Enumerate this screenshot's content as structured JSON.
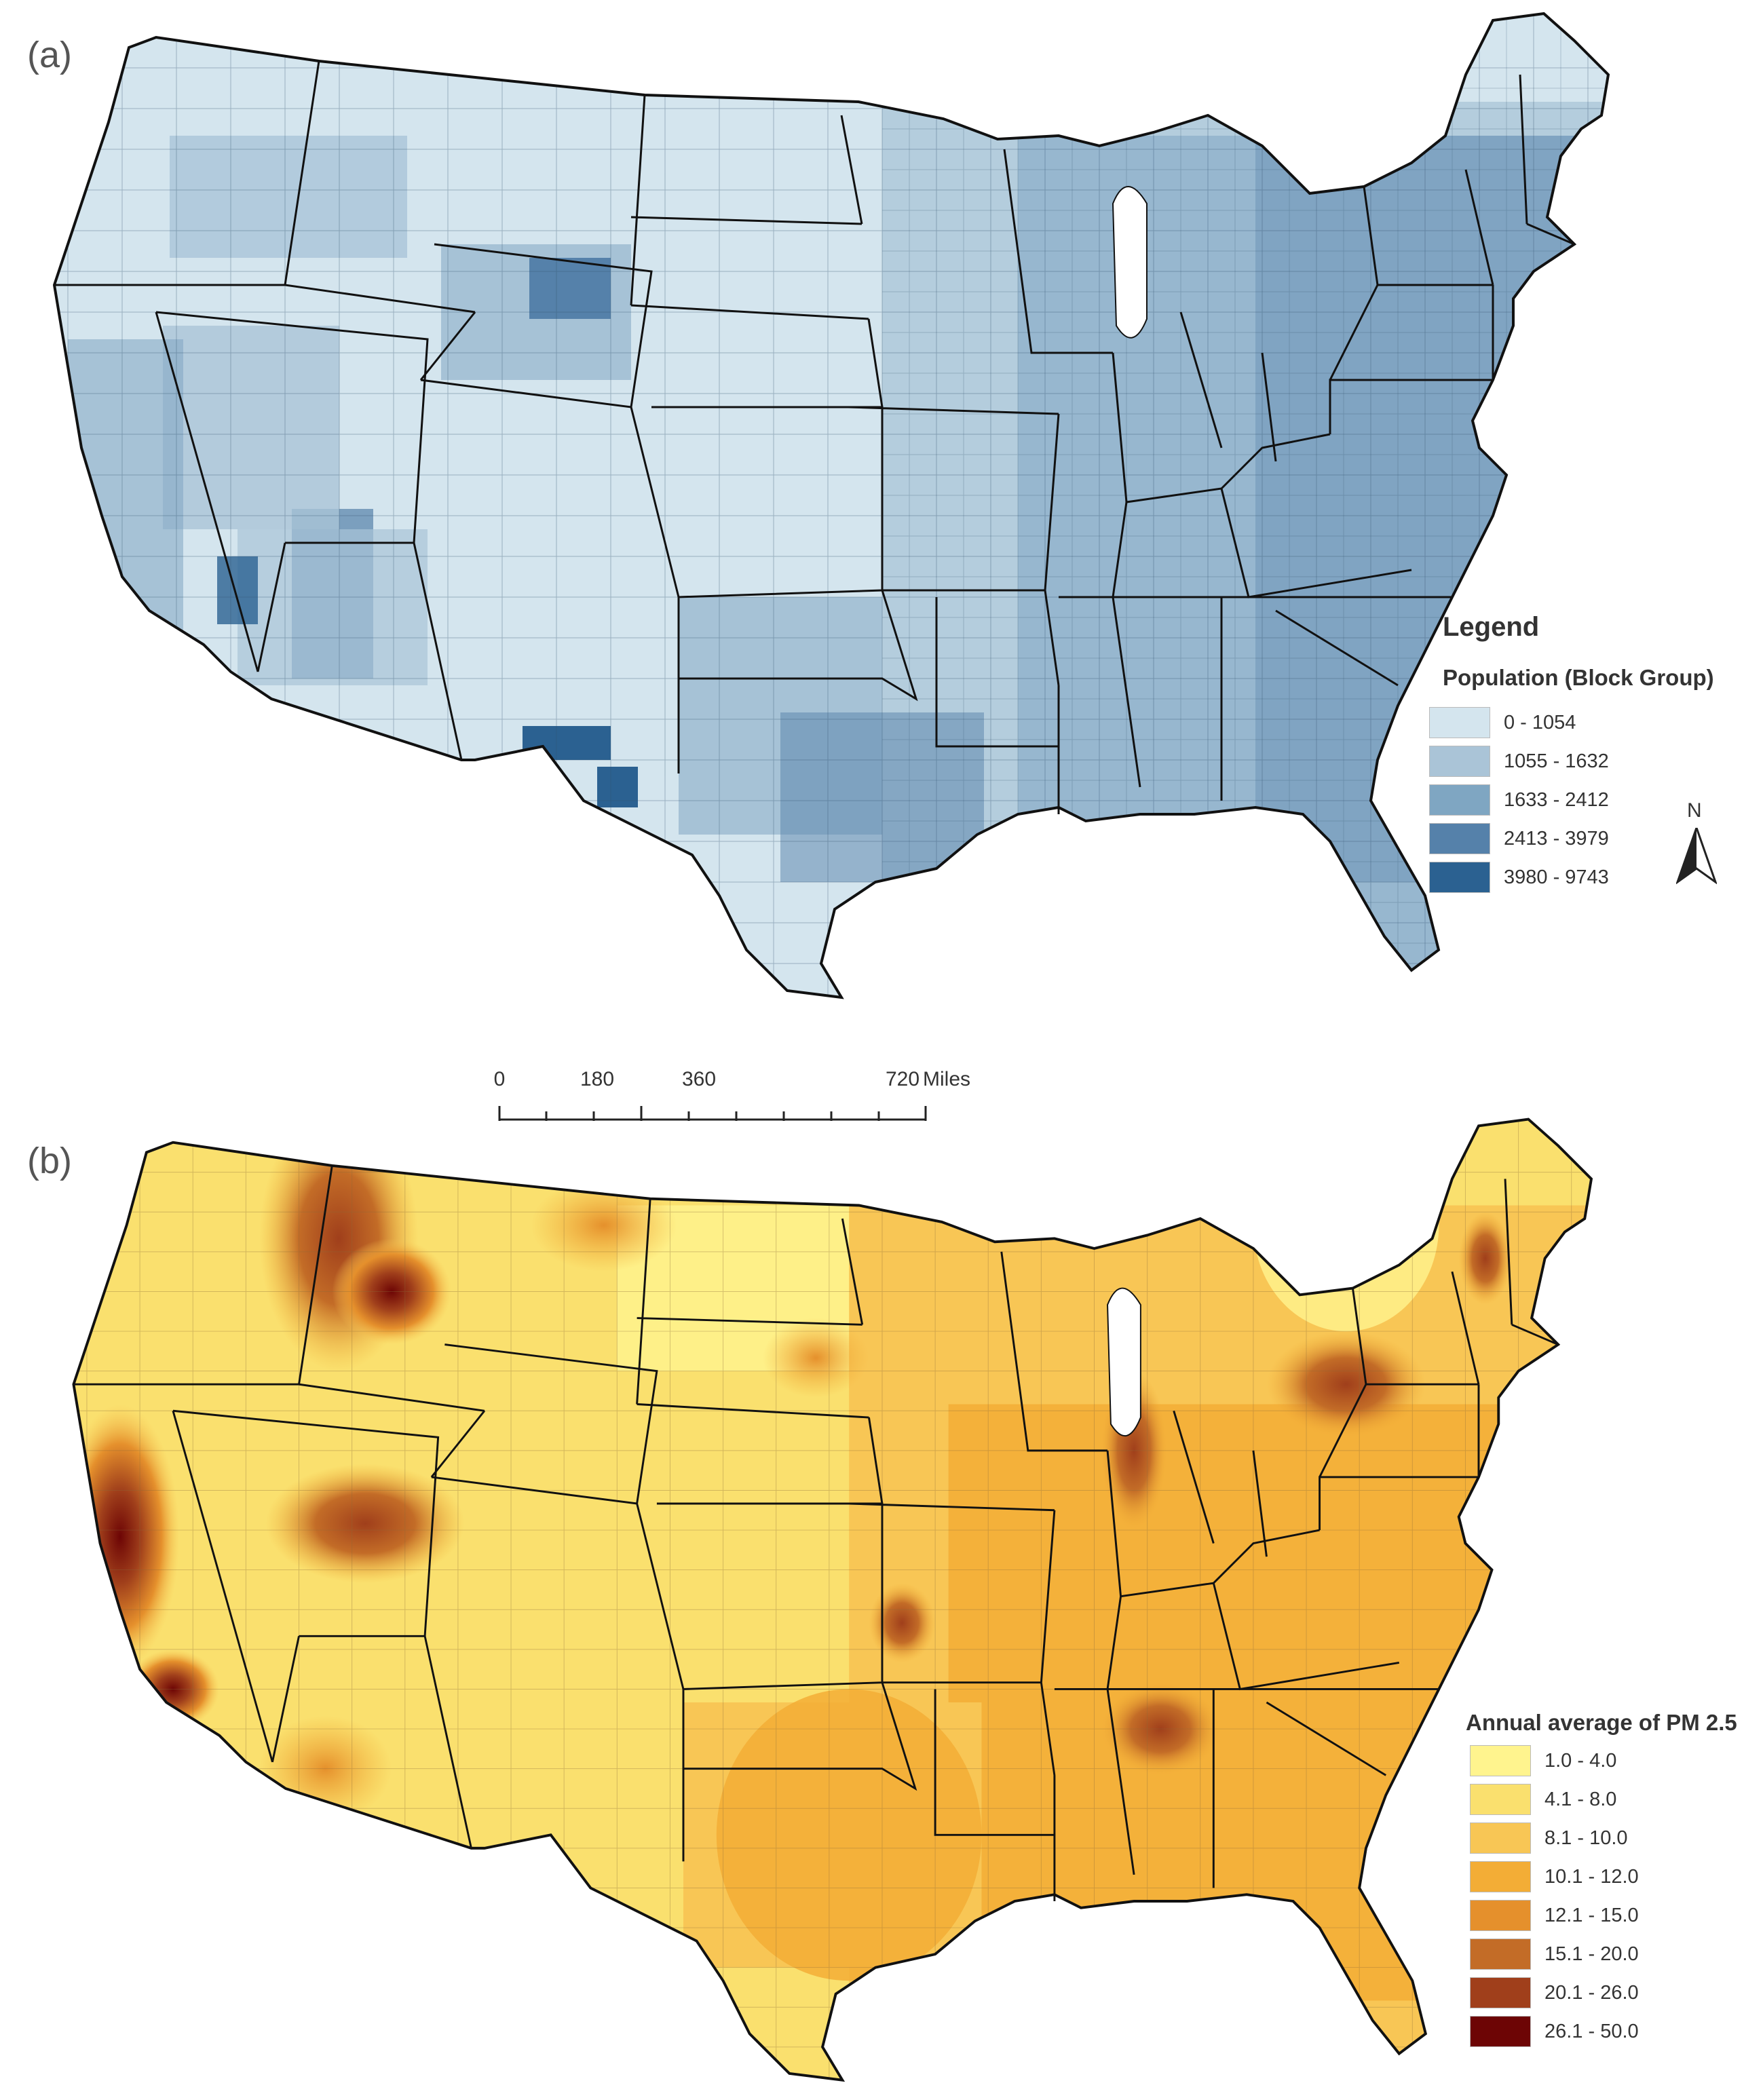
{
  "panel_a": {
    "label": "(a)",
    "legend_title": "Legend",
    "legend_subtitle": "Population (Block Group)",
    "classes": [
      {
        "label": "0 - 1054",
        "color": "#d4e5ee"
      },
      {
        "label": "1055 - 1632",
        "color": "#aac4d7"
      },
      {
        "label": "1633 - 2412",
        "color": "#7fa6c2"
      },
      {
        "label": "2413 - 3979",
        "color": "#5581aa"
      },
      {
        "label": "3980 - 9743",
        "color": "#2b6191"
      }
    ]
  },
  "panel_b": {
    "label": "(b)",
    "legend_subtitle": "Annual average of PM 2.5",
    "classes": [
      {
        "label": "1.0 - 4.0",
        "color": "#fff48e"
      },
      {
        "label": "4.1 - 8.0",
        "color": "#fae06e"
      },
      {
        "label": "8.1 - 10.0",
        "color": "#f8c655"
      },
      {
        "label": "10.1 - 12.0",
        "color": "#f3ad36"
      },
      {
        "label": "12.1 - 15.0",
        "color": "#e5902c"
      },
      {
        "label": "15.1 - 20.0",
        "color": "#c36c27"
      },
      {
        "label": "20.1 - 26.0",
        "color": "#a03f1b"
      },
      {
        "label": "26.1 - 50.0",
        "color": "#6d0505"
      }
    ]
  },
  "north_arrow": {
    "letter": "N"
  },
  "scale_bar": {
    "ticks": [
      "0",
      "180",
      "360",
      "720"
    ],
    "unit": "Miles"
  }
}
